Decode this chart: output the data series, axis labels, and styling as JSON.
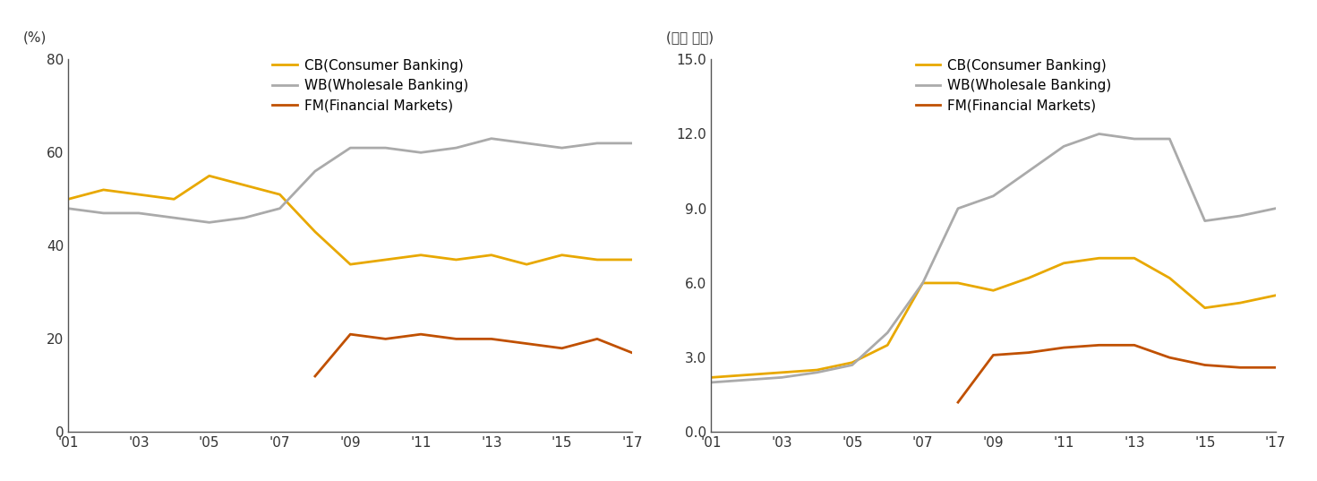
{
  "years": [
    2001,
    2002,
    2003,
    2004,
    2005,
    2006,
    2007,
    2008,
    2009,
    2010,
    2011,
    2012,
    2013,
    2014,
    2015,
    2016,
    2017
  ],
  "left_ylabel": "(%)",
  "right_ylabel": "(십억 달러)",
  "cb_color": "#E8A800",
  "wb_color": "#AAAAAA",
  "fm_color": "#C05000",
  "cb_label": "CB(Consumer Banking)",
  "wb_label": "WB(Wholesale Banking)",
  "fm_label": "FM(Financial Markets)",
  "left_cb": [
    50,
    52,
    51,
    50,
    55,
    53,
    51,
    43,
    36,
    37,
    38,
    37,
    38,
    36,
    38,
    37,
    37
  ],
  "left_wb": [
    48,
    47,
    47,
    46,
    45,
    46,
    48,
    56,
    61,
    61,
    60,
    61,
    63,
    62,
    61,
    62,
    62
  ],
  "left_fm": [
    null,
    null,
    null,
    null,
    null,
    null,
    null,
    12,
    21,
    20,
    21,
    20,
    20,
    19,
    18,
    20,
    17
  ],
  "left_ylim": [
    0,
    80
  ],
  "left_yticks": [
    0,
    20,
    40,
    60,
    80
  ],
  "right_cb": [
    2.2,
    2.3,
    2.4,
    2.5,
    2.8,
    3.5,
    6.0,
    6.0,
    5.7,
    6.2,
    6.8,
    7.0,
    7.0,
    6.2,
    5.0,
    5.2,
    5.5
  ],
  "right_wb": [
    2.0,
    2.1,
    2.2,
    2.4,
    2.7,
    4.0,
    6.0,
    9.0,
    9.5,
    10.5,
    11.5,
    12.0,
    11.8,
    11.8,
    8.5,
    8.7,
    9.0
  ],
  "right_fm": [
    null,
    null,
    null,
    null,
    null,
    null,
    null,
    1.2,
    3.1,
    3.2,
    3.4,
    3.5,
    3.5,
    3.0,
    2.7,
    2.6,
    2.6
  ],
  "right_ylim": [
    0,
    15.0
  ],
  "right_yticks": [
    0.0,
    3.0,
    6.0,
    9.0,
    12.0,
    15.0
  ],
  "xtick_labels": [
    "'01",
    "'03",
    "'05",
    "'07",
    "'09",
    "'11",
    "'13",
    "'15",
    "'17"
  ],
  "xtick_positions": [
    2001,
    2003,
    2005,
    2007,
    2009,
    2011,
    2013,
    2015,
    2017
  ],
  "line_width": 2.0,
  "legend_fontsize": 11,
  "ylabel_fontsize": 11,
  "tick_fontsize": 11,
  "background_color": "#FFFFFF"
}
